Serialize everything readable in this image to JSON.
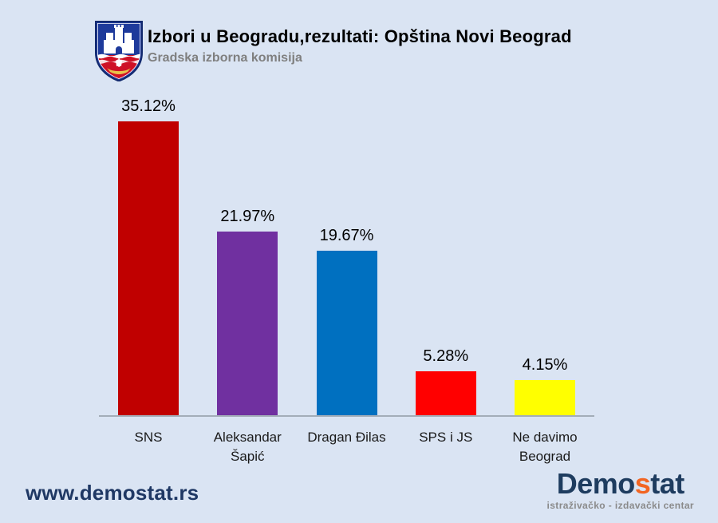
{
  "page": {
    "background_color": "#dae4f3"
  },
  "header": {
    "title": "Izbori u Beogradu,rezultati: Opština Novi Beograd",
    "subtitle": "Gradska izborna komisija",
    "logo_name": "belgrade-coat-of-arms"
  },
  "chart_data": {
    "type": "bar",
    "title": "Izbori u Beogradu,rezultati: Opština Novi Beograd",
    "subtitle": "Gradska izborna komisija",
    "categories": [
      "SNS",
      "Aleksandar Šapić",
      "Dragan Đilas",
      "SPS i JS",
      "Ne davimo Beograd"
    ],
    "values": [
      35.12,
      21.97,
      19.67,
      5.28,
      4.15
    ],
    "value_labels": [
      "35.12%",
      "21.97%",
      "19.67%",
      "5.28%",
      "4.15%"
    ],
    "bar_colors": [
      "#c00000",
      "#7030a0",
      "#0070c0",
      "#ff0000",
      "#ffff00"
    ],
    "xlabel": "",
    "ylabel": "",
    "ylim": [
      0,
      37.2
    ],
    "grid": false,
    "legend": false,
    "axis_line_color": "#a3adb8",
    "value_label_position": "above-bar"
  },
  "footer": {
    "website": "www.demostat.rs",
    "website_color": "#1f3864",
    "brand": {
      "parts": [
        {
          "text": "Demo",
          "color": "#1e3c5f"
        },
        {
          "text": "s",
          "color": "#f26522"
        },
        {
          "text": "tat",
          "color": "#1e3c5f"
        }
      ],
      "tagline": "istraživačko - izdavački centar",
      "tagline_color": "#8a8a8a"
    }
  }
}
